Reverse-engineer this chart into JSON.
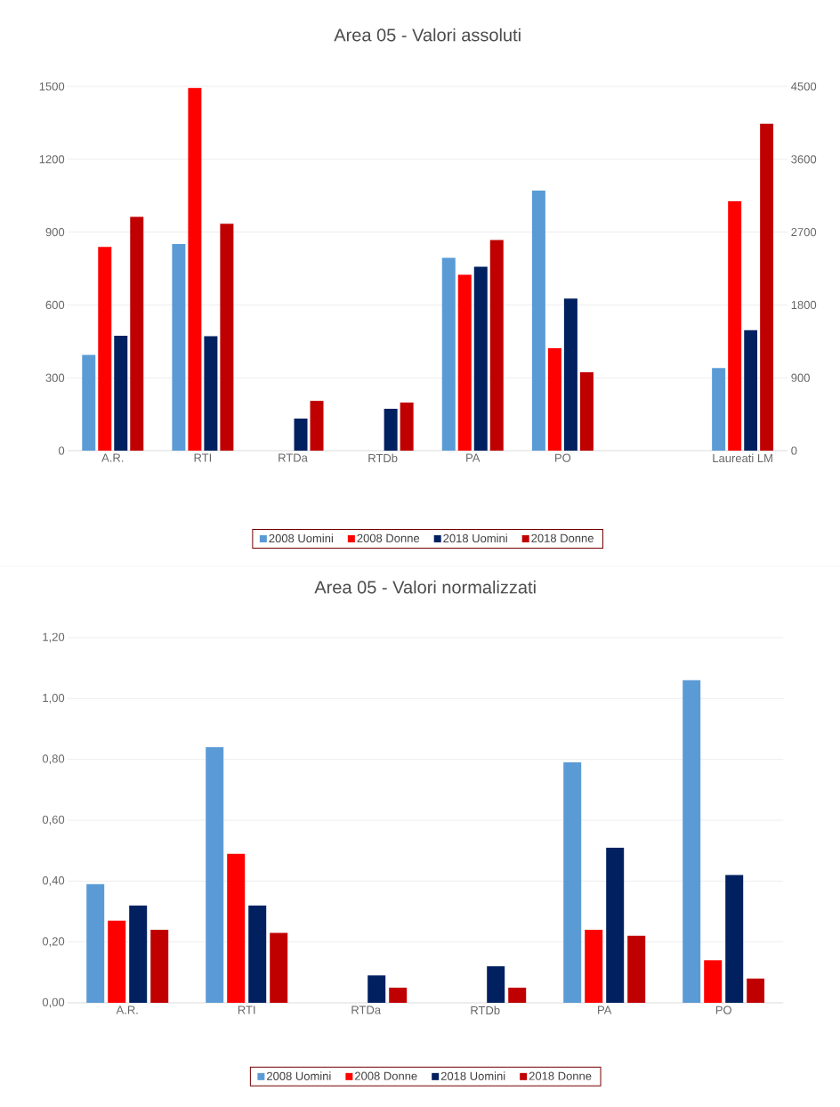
{
  "chart_data": [
    {
      "type": "bar",
      "title": "Area 05 - Valori assoluti",
      "categories": [
        "A.R.",
        "RTI",
        "RTDa",
        "RTDb",
        "PA",
        "PO",
        null,
        "Laureati LM"
      ],
      "series": [
        {
          "name": "2008 Uomini",
          "color": "#5b9bd5",
          "values": [
            394,
            851,
            null,
            null,
            794,
            1071,
            null,
            null
          ]
        },
        {
          "name": "2008 Donne",
          "color": "#ff0000",
          "values": [
            839,
            1494,
            null,
            null,
            724,
            422,
            null,
            null
          ]
        },
        {
          "name": "2018 Uomini",
          "color": "#002060",
          "values": [
            473,
            471,
            132,
            172,
            757,
            626,
            null,
            null
          ]
        },
        {
          "name": "2018 Donne",
          "color": "#c00000",
          "values": [
            963,
            934,
            205,
            198,
            867,
            323,
            null,
            null
          ]
        },
        {
          "color": "#5b9bd5",
          "axis": "y2",
          "values": [
            null,
            null,
            null,
            null,
            null,
            null,
            null,
            1020
          ]
        },
        {
          "color": "#ff0000",
          "axis": "y2",
          "values": [
            null,
            null,
            null,
            null,
            null,
            null,
            null,
            3080
          ]
        },
        {
          "color": "#002060",
          "axis": "y2",
          "values": [
            null,
            null,
            null,
            null,
            null,
            null,
            null,
            1490
          ]
        },
        {
          "color": "#c00000",
          "axis": "y2",
          "values": [
            null,
            null,
            null,
            null,
            null,
            null,
            null,
            4040
          ]
        }
      ],
      "ylim": [
        0,
        1500
      ],
      "yticks": [
        0,
        300,
        600,
        900,
        1200,
        1500
      ],
      "y2lim": [
        0,
        4500
      ],
      "y2ticks": [
        0,
        900,
        1800,
        2700,
        3600,
        4500
      ],
      "grid": "y",
      "legend": "bottom"
    },
    {
      "type": "bar",
      "title": "Area 05 - Valori normalizzati",
      "categories": [
        "A.R.",
        "RTI",
        "RTDa",
        "RTDb",
        "PA",
        "PO"
      ],
      "series": [
        {
          "name": "2008 Uomini",
          "color": "#5b9bd5",
          "values": [
            0.39,
            0.84,
            null,
            null,
            0.79,
            1.06
          ]
        },
        {
          "name": "2008 Donne",
          "color": "#ff0000",
          "values": [
            0.27,
            0.49,
            null,
            null,
            0.24,
            0.14
          ]
        },
        {
          "name": "2018 Uomini",
          "color": "#002060",
          "values": [
            0.32,
            0.32,
            0.09,
            0.12,
            0.51,
            0.42
          ]
        },
        {
          "name": "2018 Donne",
          "color": "#c00000",
          "values": [
            0.24,
            0.23,
            0.05,
            0.05,
            0.22,
            0.08
          ]
        }
      ],
      "ylim": [
        0,
        1.2
      ],
      "yticks": [
        {
          "value": 0,
          "label": "0,00"
        },
        {
          "value": 0.2,
          "label": "0,20"
        },
        {
          "value": 0.4,
          "label": "0,40"
        },
        {
          "value": 0.6,
          "label": "0,60"
        },
        {
          "value": 0.8,
          "label": "0,80"
        },
        {
          "value": 1.0,
          "label": "1,00"
        },
        {
          "value": 1.2,
          "label": "1,20"
        }
      ],
      "grid": "y",
      "legend": "bottom"
    }
  ]
}
